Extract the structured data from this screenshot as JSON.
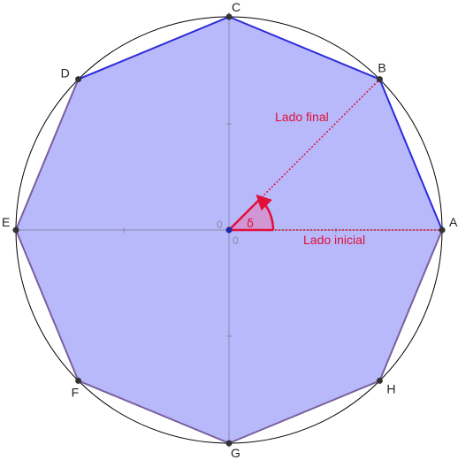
{
  "vertices": [
    {
      "label": "A",
      "angle_deg": 0
    },
    {
      "label": "B",
      "angle_deg": 45
    },
    {
      "label": "C",
      "angle_deg": 90
    },
    {
      "label": "D",
      "angle_deg": 135
    },
    {
      "label": "E",
      "angle_deg": 180
    },
    {
      "label": "F",
      "angle_deg": 225
    },
    {
      "label": "G",
      "angle_deg": 270
    },
    {
      "label": "H",
      "angle_deg": 315
    }
  ],
  "angle": {
    "symbol": "δ",
    "degrees": 45
  },
  "labels": {
    "initial_side": "Lado inicial",
    "terminal_side": "Lado final",
    "origin_x": "0",
    "origin_y": "0"
  },
  "colors": {
    "polygon_fill": "#b7b9fb",
    "polygon_stroke_highlight": "#2b2bd9",
    "polygon_stroke": "#7b5f9c",
    "circle": "#000000",
    "axes": "#8a8ca8",
    "angle_accent": "#e0103a",
    "angle_fill": "#d98bc7",
    "origin_point": "#1b2aa8",
    "vertex_point": "#333333",
    "label_text": "#222222"
  }
}
